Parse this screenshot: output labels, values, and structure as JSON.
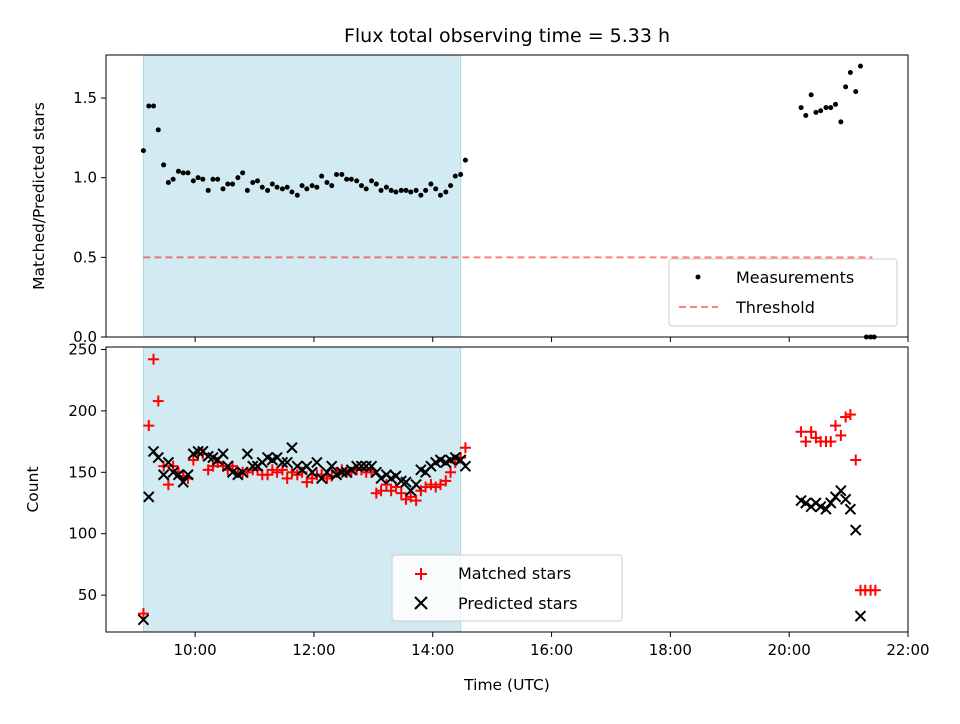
{
  "colors": {
    "shade": "#add8e6",
    "measurement": "#000000",
    "threshold": "#ff0000",
    "matched": "#ff0000",
    "predicted": "#000000"
  },
  "chart_data": [
    {
      "type": "scatter",
      "title": "Flux total observing time = 5.33 h",
      "xlabel": "",
      "ylabel": "Matched/Predicted stars",
      "xlim": [
        8.5,
        22.0
      ],
      "ylim": [
        0.0,
        1.77
      ],
      "yticks": [
        0.0,
        0.5,
        1.0,
        1.5
      ],
      "ytick_labels": [
        "0.0",
        "0.5",
        "1.0",
        "1.5"
      ],
      "shaded_span": [
        9.13,
        14.47
      ],
      "threshold": {
        "y": 0.5,
        "x_range": [
          9.13,
          21.4
        ]
      },
      "legend": {
        "position": "bottom-right",
        "entries": [
          "Measurements",
          "Threshold"
        ]
      },
      "series": [
        {
          "name": "Measurements",
          "points": [
            [
              9.13,
              1.17
            ],
            [
              9.22,
              1.45
            ],
            [
              9.3,
              1.45
            ],
            [
              9.38,
              1.3
            ],
            [
              9.47,
              1.08
            ],
            [
              9.55,
              0.97
            ],
            [
              9.63,
              0.99
            ],
            [
              9.72,
              1.04
            ],
            [
              9.8,
              1.03
            ],
            [
              9.88,
              1.03
            ],
            [
              9.97,
              0.98
            ],
            [
              10.05,
              1.0
            ],
            [
              10.13,
              0.99
            ],
            [
              10.22,
              0.92
            ],
            [
              10.3,
              0.99
            ],
            [
              10.38,
              0.99
            ],
            [
              10.47,
              0.93
            ],
            [
              10.55,
              0.96
            ],
            [
              10.63,
              0.96
            ],
            [
              10.72,
              1.0
            ],
            [
              10.8,
              1.03
            ],
            [
              10.88,
              0.92
            ],
            [
              10.97,
              0.97
            ],
            [
              11.05,
              0.98
            ],
            [
              11.13,
              0.94
            ],
            [
              11.22,
              0.92
            ],
            [
              11.3,
              0.96
            ],
            [
              11.38,
              0.94
            ],
            [
              11.47,
              0.93
            ],
            [
              11.55,
              0.94
            ],
            [
              11.63,
              0.91
            ],
            [
              11.72,
              0.89
            ],
            [
              11.8,
              0.95
            ],
            [
              11.88,
              0.93
            ],
            [
              11.97,
              0.95
            ],
            [
              12.05,
              0.94
            ],
            [
              12.13,
              1.01
            ],
            [
              12.22,
              0.97
            ],
            [
              12.3,
              0.95
            ],
            [
              12.38,
              1.02
            ],
            [
              12.47,
              1.02
            ],
            [
              12.55,
              0.99
            ],
            [
              12.63,
              0.99
            ],
            [
              12.72,
              0.98
            ],
            [
              12.8,
              0.95
            ],
            [
              12.88,
              0.93
            ],
            [
              12.97,
              0.98
            ],
            [
              13.05,
              0.96
            ],
            [
              13.13,
              0.92
            ],
            [
              13.22,
              0.94
            ],
            [
              13.3,
              0.92
            ],
            [
              13.38,
              0.91
            ],
            [
              13.47,
              0.92
            ],
            [
              13.55,
              0.92
            ],
            [
              13.63,
              0.91
            ],
            [
              13.72,
              0.92
            ],
            [
              13.8,
              0.89
            ],
            [
              13.88,
              0.92
            ],
            [
              13.97,
              0.96
            ],
            [
              14.05,
              0.93
            ],
            [
              14.13,
              0.89
            ],
            [
              14.22,
              0.91
            ],
            [
              14.3,
              0.95
            ],
            [
              14.38,
              1.01
            ],
            [
              14.47,
              1.02
            ],
            [
              14.55,
              1.11
            ],
            [
              20.2,
              1.44
            ],
            [
              20.28,
              1.39
            ],
            [
              20.37,
              1.52
            ],
            [
              20.45,
              1.41
            ],
            [
              20.53,
              1.42
            ],
            [
              20.62,
              1.44
            ],
            [
              20.7,
              1.44
            ],
            [
              20.78,
              1.46
            ],
            [
              20.87,
              1.35
            ],
            [
              20.95,
              1.57
            ],
            [
              21.03,
              1.66
            ],
            [
              21.12,
              1.54
            ],
            [
              21.2,
              1.7
            ],
            [
              21.3,
              0.0
            ],
            [
              21.37,
              0.0
            ],
            [
              21.43,
              0.0
            ]
          ]
        }
      ]
    },
    {
      "type": "scatter",
      "title": "",
      "xlabel": "Time (UTC)",
      "ylabel": "Count",
      "xlim": [
        8.5,
        22.0
      ],
      "ylim": [
        20,
        252
      ],
      "xticks": [
        10,
        12,
        14,
        16,
        18,
        20,
        22
      ],
      "xtick_labels": [
        "10:00",
        "12:00",
        "14:00",
        "16:00",
        "18:00",
        "20:00",
        "22:00"
      ],
      "yticks": [
        50,
        100,
        150,
        200,
        250
      ],
      "ytick_labels": [
        "50",
        "100",
        "150",
        "200",
        "250"
      ],
      "shaded_span": [
        9.13,
        14.47
      ],
      "legend": {
        "position": "bottom-center",
        "entries": [
          "Matched stars",
          "Predicted stars"
        ]
      },
      "series": [
        {
          "name": "Matched stars",
          "marker": "plus",
          "points": [
            [
              9.13,
              35
            ],
            [
              9.22,
              188
            ],
            [
              9.3,
              242
            ],
            [
              9.38,
              208
            ],
            [
              9.47,
              155
            ],
            [
              9.55,
              140
            ],
            [
              9.63,
              155
            ],
            [
              9.72,
              150
            ],
            [
              9.8,
              147
            ],
            [
              9.88,
              145
            ],
            [
              9.97,
              160
            ],
            [
              10.05,
              165
            ],
            [
              10.13,
              165
            ],
            [
              10.22,
              152
            ],
            [
              10.3,
              155
            ],
            [
              10.38,
              158
            ],
            [
              10.47,
              155
            ],
            [
              10.55,
              152
            ],
            [
              10.63,
              155
            ],
            [
              10.72,
              150
            ],
            [
              10.8,
              150
            ],
            [
              10.88,
              150
            ],
            [
              10.97,
              152
            ],
            [
              11.05,
              152
            ],
            [
              11.13,
              148
            ],
            [
              11.22,
              148
            ],
            [
              11.3,
              152
            ],
            [
              11.38,
              150
            ],
            [
              11.47,
              152
            ],
            [
              11.55,
              145
            ],
            [
              11.63,
              150
            ],
            [
              11.72,
              148
            ],
            [
              11.8,
              150
            ],
            [
              11.88,
              142
            ],
            [
              11.97,
              145
            ],
            [
              12.05,
              148
            ],
            [
              12.13,
              148
            ],
            [
              12.22,
              145
            ],
            [
              12.3,
              147
            ],
            [
              12.38,
              150
            ],
            [
              12.47,
              152
            ],
            [
              12.55,
              150
            ],
            [
              12.63,
              150
            ],
            [
              12.72,
              152
            ],
            [
              12.8,
              152
            ],
            [
              12.88,
              150
            ],
            [
              12.97,
              150
            ],
            [
              13.05,
              133
            ],
            [
              13.13,
              135
            ],
            [
              13.22,
              140
            ],
            [
              13.3,
              135
            ],
            [
              13.38,
              138
            ],
            [
              13.47,
              133
            ],
            [
              13.55,
              128
            ],
            [
              13.63,
              130
            ],
            [
              13.72,
              127
            ],
            [
              13.8,
              135
            ],
            [
              13.88,
              138
            ],
            [
              13.97,
              140
            ],
            [
              14.05,
              138
            ],
            [
              14.13,
              140
            ],
            [
              14.22,
              143
            ],
            [
              14.3,
              150
            ],
            [
              14.38,
              158
            ],
            [
              14.47,
              162
            ],
            [
              14.55,
              170
            ],
            [
              20.2,
              183
            ],
            [
              20.28,
              175
            ],
            [
              20.37,
              183
            ],
            [
              20.45,
              178
            ],
            [
              20.53,
              175
            ],
            [
              20.62,
              175
            ],
            [
              20.7,
              175
            ],
            [
              20.78,
              188
            ],
            [
              20.87,
              180
            ],
            [
              20.95,
              195
            ],
            [
              21.03,
              197
            ],
            [
              21.12,
              160
            ],
            [
              21.2,
              54
            ],
            [
              21.28,
              54
            ],
            [
              21.37,
              54
            ],
            [
              21.45,
              54
            ]
          ]
        },
        {
          "name": "Predicted stars",
          "marker": "x",
          "points": [
            [
              9.13,
              30
            ],
            [
              9.22,
              130
            ],
            [
              9.3,
              167
            ],
            [
              9.38,
              162
            ],
            [
              9.47,
              148
            ],
            [
              9.55,
              158
            ],
            [
              9.63,
              150
            ],
            [
              9.72,
              148
            ],
            [
              9.8,
              142
            ],
            [
              9.88,
              148
            ],
            [
              9.97,
              165
            ],
            [
              10.05,
              167
            ],
            [
              10.13,
              167
            ],
            [
              10.22,
              163
            ],
            [
              10.3,
              162
            ],
            [
              10.38,
              160
            ],
            [
              10.47,
              165
            ],
            [
              10.55,
              155
            ],
            [
              10.63,
              150
            ],
            [
              10.72,
              148
            ],
            [
              10.8,
              150
            ],
            [
              10.88,
              165
            ],
            [
              10.97,
              155
            ],
            [
              11.05,
              155
            ],
            [
              11.13,
              158
            ],
            [
              11.22,
              162
            ],
            [
              11.3,
              160
            ],
            [
              11.38,
              162
            ],
            [
              11.47,
              158
            ],
            [
              11.55,
              158
            ],
            [
              11.63,
              170
            ],
            [
              11.72,
              155
            ],
            [
              11.8,
              152
            ],
            [
              11.88,
              155
            ],
            [
              11.97,
              150
            ],
            [
              12.05,
              158
            ],
            [
              12.13,
              145
            ],
            [
              12.22,
              150
            ],
            [
              12.3,
              155
            ],
            [
              12.38,
              148
            ],
            [
              12.47,
              150
            ],
            [
              12.55,
              150
            ],
            [
              12.63,
              152
            ],
            [
              12.72,
              155
            ],
            [
              12.8,
              155
            ],
            [
              12.88,
              155
            ],
            [
              12.97,
              155
            ],
            [
              13.05,
              150
            ],
            [
              13.13,
              145
            ],
            [
              13.22,
              148
            ],
            [
              13.3,
              145
            ],
            [
              13.38,
              147
            ],
            [
              13.47,
              143
            ],
            [
              13.55,
              142
            ],
            [
              13.63,
              135
            ],
            [
              13.72,
              140
            ],
            [
              13.8,
              152
            ],
            [
              13.88,
              150
            ],
            [
              13.97,
              155
            ],
            [
              14.05,
              158
            ],
            [
              14.13,
              160
            ],
            [
              14.22,
              158
            ],
            [
              14.3,
              160
            ],
            [
              14.38,
              162
            ],
            [
              14.47,
              160
            ],
            [
              14.55,
              155
            ],
            [
              20.2,
              127
            ],
            [
              20.28,
              125
            ],
            [
              20.37,
              122
            ],
            [
              20.45,
              125
            ],
            [
              20.53,
              122
            ],
            [
              20.62,
              120
            ],
            [
              20.7,
              125
            ],
            [
              20.78,
              130
            ],
            [
              20.87,
              135
            ],
            [
              20.95,
              128
            ],
            [
              21.03,
              120
            ],
            [
              21.12,
              103
            ],
            [
              21.2,
              33
            ]
          ]
        }
      ]
    }
  ]
}
